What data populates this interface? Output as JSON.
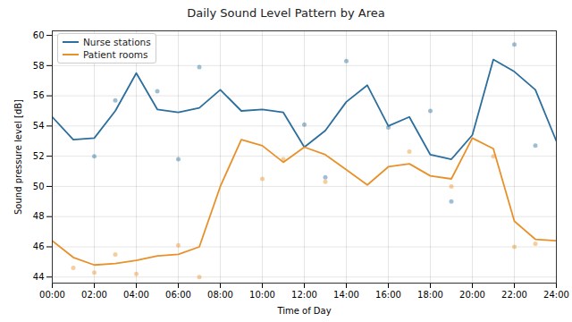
{
  "chart_data": {
    "type": "line",
    "title": "Daily Sound Level Pattern by Area",
    "x_label": "Time of Day",
    "y_label": "Sound pressure level [dB]",
    "x": [
      0,
      1,
      2,
      3,
      4,
      5,
      6,
      7,
      8,
      9,
      10,
      11,
      12,
      13,
      14,
      15,
      16,
      17,
      18,
      19,
      20,
      21,
      22,
      23,
      24
    ],
    "series": [
      {
        "name": "Nurse stations",
        "color": "#2c6e9c",
        "marker": "none",
        "line_style": "solid",
        "values": [
          54.6,
          53.1,
          53.2,
          55.0,
          57.5,
          55.1,
          54.9,
          55.2,
          56.4,
          55.0,
          55.1,
          54.9,
          52.6,
          53.7,
          55.6,
          56.7,
          54.0,
          54.6,
          52.1,
          51.8,
          53.4,
          58.4,
          57.6,
          56.4,
          53.0
        ],
        "observations": [
          [
            2,
            52.0
          ],
          [
            3,
            55.7
          ],
          [
            5,
            56.3
          ],
          [
            6,
            51.8
          ],
          [
            7,
            57.9
          ],
          [
            12,
            54.1
          ],
          [
            13,
            50.6
          ],
          [
            14,
            58.3
          ],
          [
            16,
            53.9
          ],
          [
            18,
            55.0
          ],
          [
            19,
            49.0
          ],
          [
            22,
            59.4
          ],
          [
            23,
            52.7
          ]
        ]
      },
      {
        "name": "Patient rooms",
        "color": "#e8912b",
        "marker": "none",
        "line_style": "solid",
        "values": [
          46.4,
          45.3,
          44.8,
          44.9,
          45.1,
          45.4,
          45.5,
          46.0,
          50.0,
          53.1,
          52.7,
          51.6,
          52.6,
          52.1,
          51.1,
          50.1,
          51.3,
          51.5,
          50.7,
          50.5,
          53.2,
          52.5,
          47.7,
          46.5,
          46.4
        ],
        "observations": [
          [
            1,
            44.6
          ],
          [
            2,
            44.3
          ],
          [
            3,
            45.5
          ],
          [
            4,
            44.2
          ],
          [
            6,
            46.1
          ],
          [
            7,
            44.0
          ],
          [
            10,
            50.5
          ],
          [
            11,
            51.8
          ],
          [
            13,
            50.3
          ],
          [
            17,
            52.3
          ],
          [
            19,
            50.0
          ],
          [
            21,
            52.0
          ],
          [
            22,
            46.0
          ],
          [
            23,
            46.2
          ]
        ]
      }
    ],
    "xlim": [
      0,
      24
    ],
    "xticks": [
      {
        "value": 0,
        "label": "00:00"
      },
      {
        "value": 2,
        "label": "02:00"
      },
      {
        "value": 4,
        "label": "04:00"
      },
      {
        "value": 6,
        "label": "06:00"
      },
      {
        "value": 8,
        "label": "08:00"
      },
      {
        "value": 10,
        "label": "10:00"
      },
      {
        "value": 12,
        "label": "12:00"
      },
      {
        "value": 14,
        "label": "14:00"
      },
      {
        "value": 16,
        "label": "16:00"
      },
      {
        "value": 18,
        "label": "18:00"
      },
      {
        "value": 20,
        "label": "20:00"
      },
      {
        "value": 22,
        "label": "22:00"
      },
      {
        "value": 24,
        "label": "24:00"
      }
    ],
    "ylim": [
      43.6,
      60.3
    ],
    "yticks": [
      44,
      46,
      48,
      50,
      52,
      54,
      56,
      58,
      60
    ],
    "grid": true,
    "legend": "upper left"
  }
}
